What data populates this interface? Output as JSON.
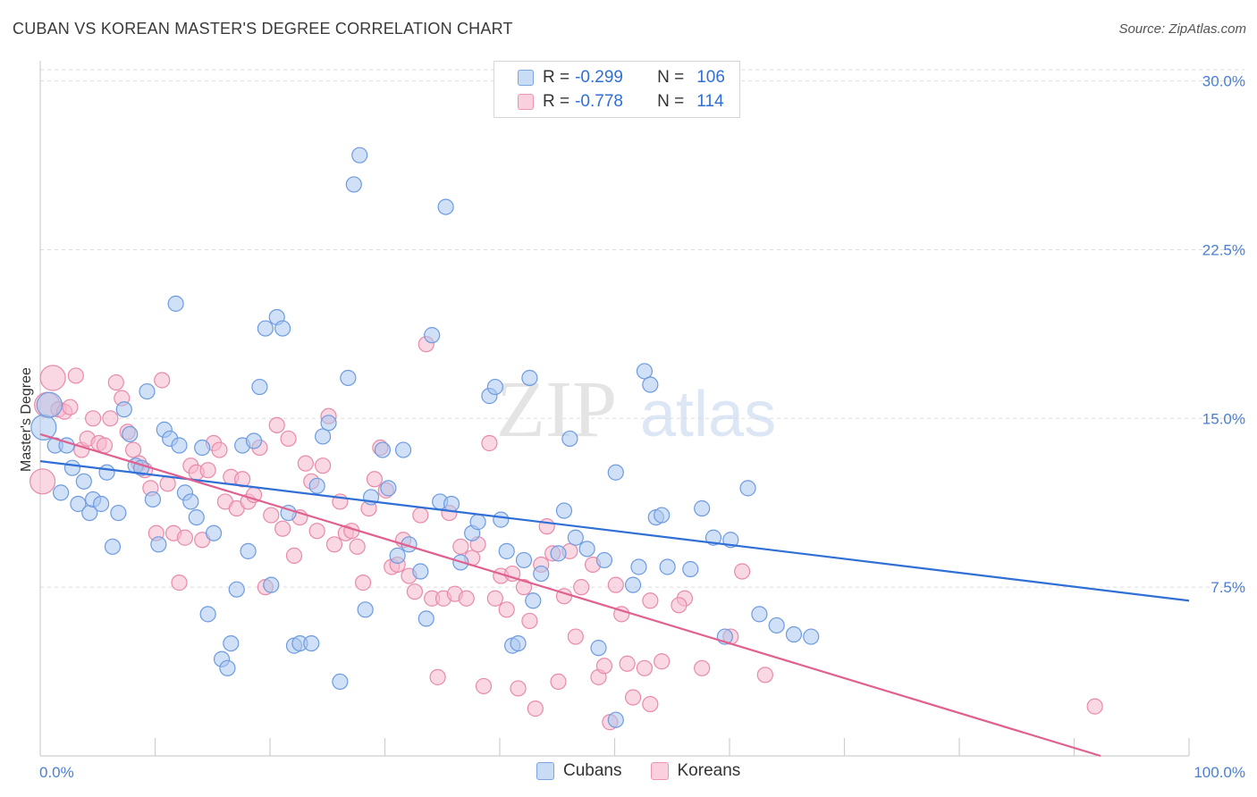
{
  "title": "CUBAN VS KOREAN MASTER'S DEGREE CORRELATION CHART",
  "source": "Source: ZipAtlas.com",
  "watermark": {
    "zip": "ZIP",
    "atlas": "atlas"
  },
  "legend": {
    "rows": [
      {
        "r_label": "R =",
        "r_value": "-0.299",
        "n_label": "N =",
        "n_value": "106"
      },
      {
        "r_label": "R =",
        "r_value": "-0.778",
        "n_label": "N =",
        "n_value": "114"
      }
    ]
  },
  "bottom_legend": [
    "Cubans",
    "Koreans"
  ],
  "colors": {
    "cubans_fill": "#a9c6ee",
    "cubans_stroke": "#6d9be0",
    "cubans_line": "#2f6fd6",
    "koreans_fill": "#f5b8cc",
    "koreans_stroke": "#e88aa9",
    "koreans_line": "#e0608f",
    "tick_text": "#4a7fd0",
    "grid": "#dddddd"
  },
  "chart_data": {
    "type": "scatter",
    "title": "CUBAN VS KOREAN MASTER'S DEGREE CORRELATION CHART",
    "xlabel": "",
    "ylabel": "Master's Degree",
    "xlim": [
      0,
      100
    ],
    "ylim": [
      0,
      30.5
    ],
    "x_tick_labels": [
      "0.0%",
      "100.0%"
    ],
    "y_ticks": [
      7.5,
      15.0,
      22.5,
      30.0
    ],
    "y_tick_labels": [
      "7.5%",
      "15.0%",
      "22.5%",
      "30.0%"
    ],
    "grid": "horizontal dashed",
    "legend_position": "top-center",
    "series": [
      {
        "name": "Cubans",
        "R": -0.299,
        "N": 106,
        "trend": {
          "x": [
            0,
            100
          ],
          "y": [
            13.1,
            6.9
          ]
        },
        "points": [
          [
            0.3,
            14.6
          ],
          [
            0.8,
            15.6
          ],
          [
            1.3,
            13.8
          ],
          [
            1.8,
            11.7
          ],
          [
            2.3,
            13.8
          ],
          [
            2.8,
            12.8
          ],
          [
            3.3,
            11.2
          ],
          [
            3.8,
            12.2
          ],
          [
            4.3,
            10.8
          ],
          [
            4.6,
            11.4
          ],
          [
            5.3,
            11.2
          ],
          [
            5.8,
            12.6
          ],
          [
            6.3,
            9.3
          ],
          [
            6.8,
            10.8
          ],
          [
            7.3,
            15.4
          ],
          [
            7.8,
            14.3
          ],
          [
            8.3,
            12.9
          ],
          [
            8.8,
            12.8
          ],
          [
            9.3,
            16.2
          ],
          [
            9.8,
            11.4
          ],
          [
            10.3,
            9.4
          ],
          [
            10.8,
            14.5
          ],
          [
            11.3,
            14.1
          ],
          [
            11.8,
            20.1
          ],
          [
            12.1,
            13.8
          ],
          [
            12.6,
            11.7
          ],
          [
            13.1,
            11.3
          ],
          [
            13.6,
            10.6
          ],
          [
            14.1,
            13.7
          ],
          [
            14.6,
            6.3
          ],
          [
            15.1,
            9.9
          ],
          [
            15.8,
            4.3
          ],
          [
            16.3,
            3.9
          ],
          [
            16.6,
            5.0
          ],
          [
            17.1,
            7.4
          ],
          [
            17.6,
            13.8
          ],
          [
            18.1,
            9.1
          ],
          [
            18.6,
            14.0
          ],
          [
            19.1,
            16.4
          ],
          [
            19.6,
            19.0
          ],
          [
            20.1,
            7.6
          ],
          [
            20.6,
            19.5
          ],
          [
            21.1,
            19.0
          ],
          [
            21.6,
            10.8
          ],
          [
            22.1,
            4.9
          ],
          [
            22.6,
            5.0
          ],
          [
            23.6,
            5.0
          ],
          [
            24.1,
            12.0
          ],
          [
            24.6,
            14.2
          ],
          [
            25.1,
            14.8
          ],
          [
            26.1,
            3.3
          ],
          [
            26.8,
            16.8
          ],
          [
            27.3,
            25.4
          ],
          [
            27.8,
            26.7
          ],
          [
            28.3,
            6.5
          ],
          [
            28.8,
            11.5
          ],
          [
            29.8,
            13.6
          ],
          [
            30.3,
            11.9
          ],
          [
            31.1,
            8.9
          ],
          [
            31.6,
            13.6
          ],
          [
            32.1,
            9.4
          ],
          [
            33.1,
            8.2
          ],
          [
            33.6,
            6.1
          ],
          [
            34.1,
            18.7
          ],
          [
            34.8,
            11.3
          ],
          [
            35.3,
            24.4
          ],
          [
            35.8,
            11.2
          ],
          [
            36.6,
            8.6
          ],
          [
            37.6,
            9.9
          ],
          [
            38.1,
            10.4
          ],
          [
            39.1,
            16.0
          ],
          [
            39.6,
            16.4
          ],
          [
            40.1,
            10.5
          ],
          [
            40.6,
            9.1
          ],
          [
            41.1,
            4.9
          ],
          [
            41.6,
            5.0
          ],
          [
            42.1,
            8.7
          ],
          [
            42.6,
            16.8
          ],
          [
            42.9,
            6.9
          ],
          [
            43.6,
            8.1
          ],
          [
            45.1,
            9.0
          ],
          [
            45.6,
            10.9
          ],
          [
            46.1,
            14.1
          ],
          [
            46.6,
            9.7
          ],
          [
            47.6,
            9.2
          ],
          [
            48.6,
            4.8
          ],
          [
            49.1,
            8.7
          ],
          [
            50.1,
            12.6
          ],
          [
            51.6,
            7.6
          ],
          [
            52.1,
            8.4
          ],
          [
            52.6,
            17.1
          ],
          [
            53.1,
            16.5
          ],
          [
            53.6,
            10.6
          ],
          [
            54.1,
            10.7
          ],
          [
            54.6,
            8.4
          ],
          [
            56.6,
            8.3
          ],
          [
            57.6,
            11.0
          ],
          [
            58.6,
            9.7
          ],
          [
            59.6,
            5.3
          ],
          [
            60.1,
            9.6
          ],
          [
            61.6,
            11.9
          ],
          [
            62.6,
            6.3
          ],
          [
            64.1,
            5.8
          ],
          [
            65.6,
            5.4
          ],
          [
            67.1,
            5.3
          ],
          [
            50.1,
            1.6
          ]
        ]
      },
      {
        "name": "Koreans",
        "R": -0.778,
        "N": 114,
        "trend": {
          "x": [
            0,
            92.3
          ],
          "y": [
            14.3,
            0.0
          ]
        },
        "points": [
          [
            0.2,
            12.2
          ],
          [
            0.6,
            15.6
          ],
          [
            1.1,
            16.8
          ],
          [
            1.6,
            15.4
          ],
          [
            2.1,
            15.3
          ],
          [
            2.6,
            15.5
          ],
          [
            3.1,
            16.9
          ],
          [
            3.6,
            13.6
          ],
          [
            4.1,
            14.1
          ],
          [
            4.6,
            15.0
          ],
          [
            5.1,
            13.9
          ],
          [
            5.6,
            13.8
          ],
          [
            6.1,
            15.0
          ],
          [
            6.6,
            16.6
          ],
          [
            7.1,
            15.9
          ],
          [
            7.6,
            14.4
          ],
          [
            8.1,
            13.6
          ],
          [
            8.6,
            13.0
          ],
          [
            9.1,
            12.7
          ],
          [
            9.6,
            11.9
          ],
          [
            10.1,
            9.9
          ],
          [
            10.6,
            16.7
          ],
          [
            11.1,
            12.1
          ],
          [
            11.6,
            9.9
          ],
          [
            12.1,
            7.7
          ],
          [
            12.6,
            9.7
          ],
          [
            13.1,
            12.9
          ],
          [
            13.6,
            12.6
          ],
          [
            14.1,
            9.6
          ],
          [
            14.6,
            12.7
          ],
          [
            15.1,
            13.9
          ],
          [
            15.6,
            13.6
          ],
          [
            16.1,
            11.3
          ],
          [
            16.6,
            12.4
          ],
          [
            17.1,
            11.0
          ],
          [
            17.6,
            12.3
          ],
          [
            18.1,
            11.3
          ],
          [
            18.6,
            11.6
          ],
          [
            19.1,
            13.7
          ],
          [
            19.6,
            7.5
          ],
          [
            20.1,
            10.7
          ],
          [
            20.6,
            14.7
          ],
          [
            21.1,
            10.1
          ],
          [
            21.6,
            14.1
          ],
          [
            22.1,
            8.9
          ],
          [
            22.6,
            10.6
          ],
          [
            23.1,
            13.0
          ],
          [
            23.6,
            12.2
          ],
          [
            24.1,
            10.0
          ],
          [
            24.6,
            12.9
          ],
          [
            25.1,
            15.1
          ],
          [
            25.6,
            9.4
          ],
          [
            26.1,
            11.3
          ],
          [
            26.6,
            9.9
          ],
          [
            27.1,
            10.0
          ],
          [
            27.6,
            9.3
          ],
          [
            28.1,
            7.7
          ],
          [
            28.6,
            11.0
          ],
          [
            29.1,
            12.3
          ],
          [
            29.6,
            13.7
          ],
          [
            30.1,
            11.8
          ],
          [
            30.6,
            8.4
          ],
          [
            31.1,
            8.5
          ],
          [
            31.6,
            9.6
          ],
          [
            32.1,
            8.0
          ],
          [
            32.6,
            7.3
          ],
          [
            33.1,
            10.7
          ],
          [
            33.6,
            18.3
          ],
          [
            34.1,
            7.0
          ],
          [
            34.6,
            3.5
          ],
          [
            35.1,
            7.0
          ],
          [
            35.6,
            10.8
          ],
          [
            36.1,
            7.2
          ],
          [
            36.6,
            9.3
          ],
          [
            37.1,
            7.0
          ],
          [
            37.6,
            8.8
          ],
          [
            38.1,
            9.4
          ],
          [
            38.6,
            3.1
          ],
          [
            39.1,
            13.9
          ],
          [
            39.6,
            7.0
          ],
          [
            40.1,
            8.0
          ],
          [
            40.6,
            6.5
          ],
          [
            41.1,
            8.1
          ],
          [
            41.6,
            3.0
          ],
          [
            42.1,
            7.5
          ],
          [
            42.6,
            6.0
          ],
          [
            43.1,
            2.1
          ],
          [
            43.6,
            8.5
          ],
          [
            44.1,
            10.2
          ],
          [
            44.6,
            9.0
          ],
          [
            45.1,
            3.3
          ],
          [
            45.6,
            7.1
          ],
          [
            46.1,
            9.1
          ],
          [
            46.6,
            5.3
          ],
          [
            47.1,
            7.5
          ],
          [
            48.1,
            8.5
          ],
          [
            48.6,
            3.5
          ],
          [
            49.1,
            4.0
          ],
          [
            49.6,
            1.5
          ],
          [
            50.1,
            7.6
          ],
          [
            51.1,
            4.1
          ],
          [
            51.6,
            2.6
          ],
          [
            53.1,
            6.9
          ],
          [
            54.1,
            4.2
          ],
          [
            56.1,
            7.0
          ],
          [
            57.6,
            3.9
          ],
          [
            60.1,
            5.3
          ],
          [
            61.1,
            8.2
          ],
          [
            63.1,
            3.6
          ],
          [
            91.8,
            2.2
          ],
          [
            52.6,
            3.9
          ],
          [
            50.6,
            6.3
          ],
          [
            53.1,
            2.3
          ],
          [
            55.6,
            6.7
          ]
        ]
      }
    ]
  }
}
